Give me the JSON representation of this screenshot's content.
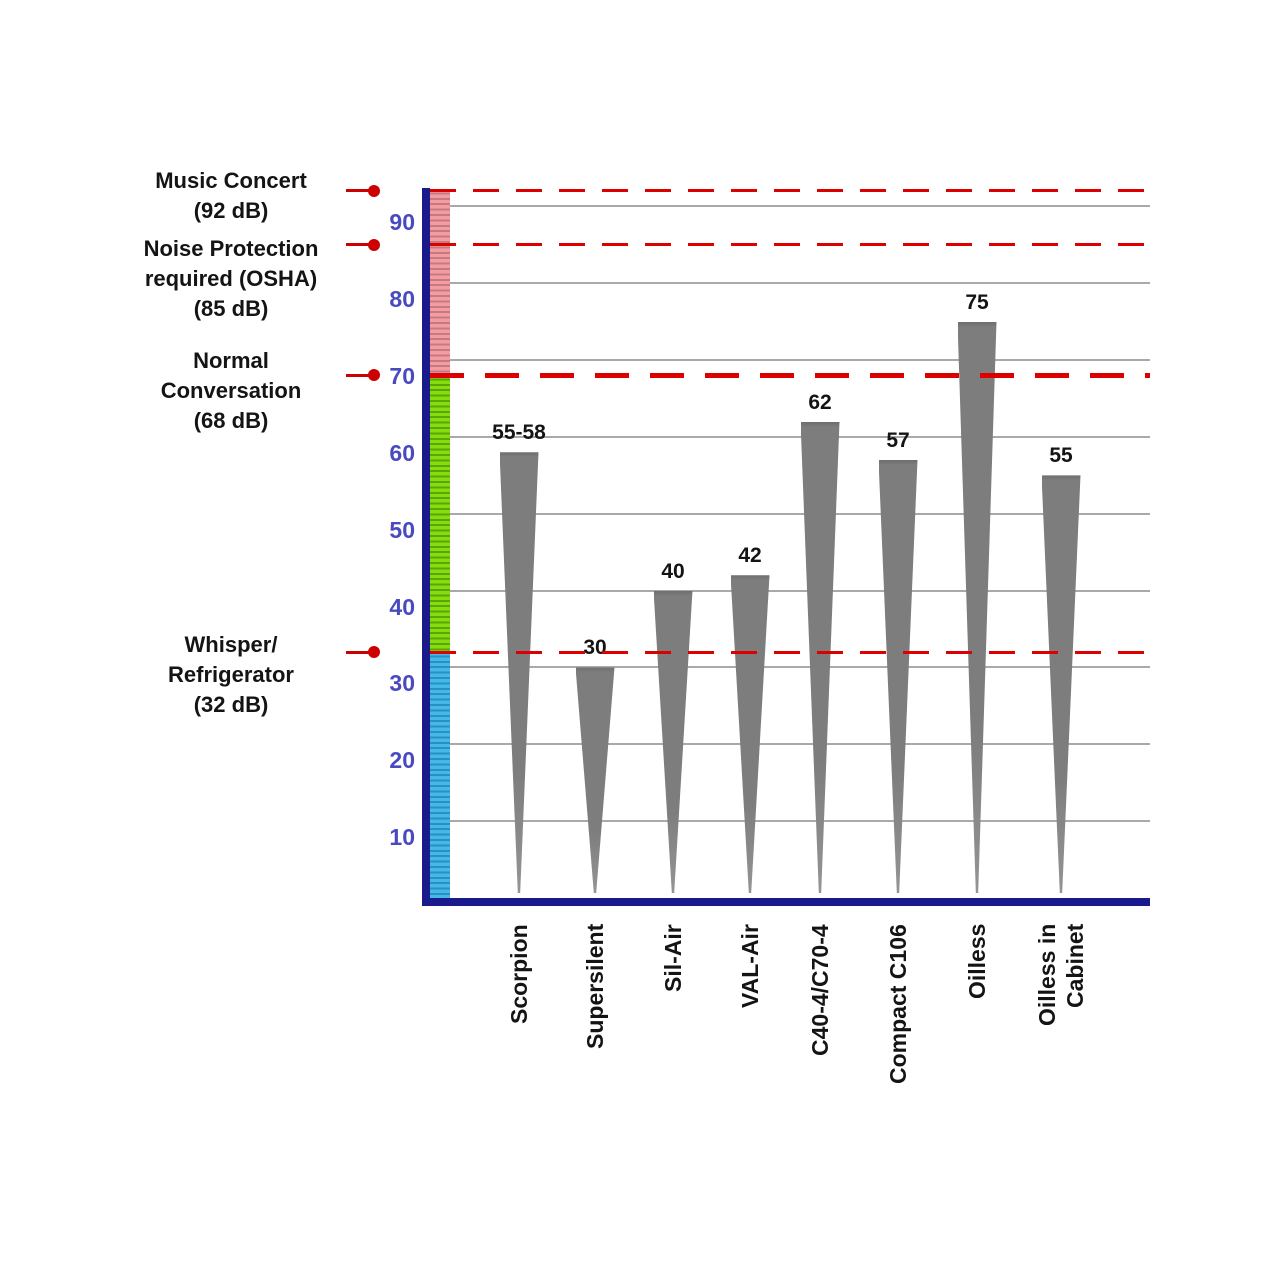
{
  "chart_data": {
    "type": "bar",
    "title": "",
    "unit": "dB",
    "categories": [
      "Scorpion",
      "Supersilent",
      "Sil-Air",
      "VAL-Air",
      "C40-4/C70-4",
      "Compact C106",
      "Oilless",
      "Oilless in\nCabinet"
    ],
    "values": [
      58,
      30,
      40,
      42,
      62,
      57,
      75,
      55
    ],
    "bar_labels": [
      "55-58",
      "30",
      "40",
      "42",
      "62",
      "57",
      "75",
      "55"
    ],
    "ylim": [
      0,
      93
    ],
    "yticks": [
      10,
      20,
      30,
      40,
      50,
      60,
      70,
      80,
      90
    ],
    "grid": true,
    "legend": null,
    "reference_lines": [
      {
        "value": 92,
        "label_lines": [
          "Music Concert",
          "(92 dB)"
        ],
        "emphasis": false
      },
      {
        "value": 85,
        "label_lines": [
          "Noise Protection",
          "required (OSHA)",
          "(85 dB)"
        ],
        "emphasis": false
      },
      {
        "value": 68,
        "label_lines": [
          "Normal",
          "Conversation",
          "(68 dB)"
        ],
        "emphasis": true
      },
      {
        "value": 32,
        "label_lines": [
          "Whisper/",
          "Refrigerator",
          "(32 dB)"
        ],
        "emphasis": false
      }
    ],
    "scale_bands": [
      {
        "from": 0,
        "to": 32,
        "name": "quiet-zone",
        "color": "#45b9e6",
        "stripe": "#2a8fc4"
      },
      {
        "from": 32,
        "to": 68,
        "name": "moderate-zone",
        "color": "#85dc0e",
        "stripe": "#5da407"
      },
      {
        "from": 68,
        "to": 92.2,
        "name": "loud-zone",
        "color": "#f59c9f",
        "stripe": "#c27b85"
      }
    ],
    "colors": {
      "bar": "#7d7d7d",
      "reference_line": "#dd0000",
      "arrow": "#cc0000",
      "grid": "#a9a9a9",
      "axis": "#1a1a8c",
      "tick_label": "#4a4ac0",
      "data_label": "#141414"
    }
  }
}
